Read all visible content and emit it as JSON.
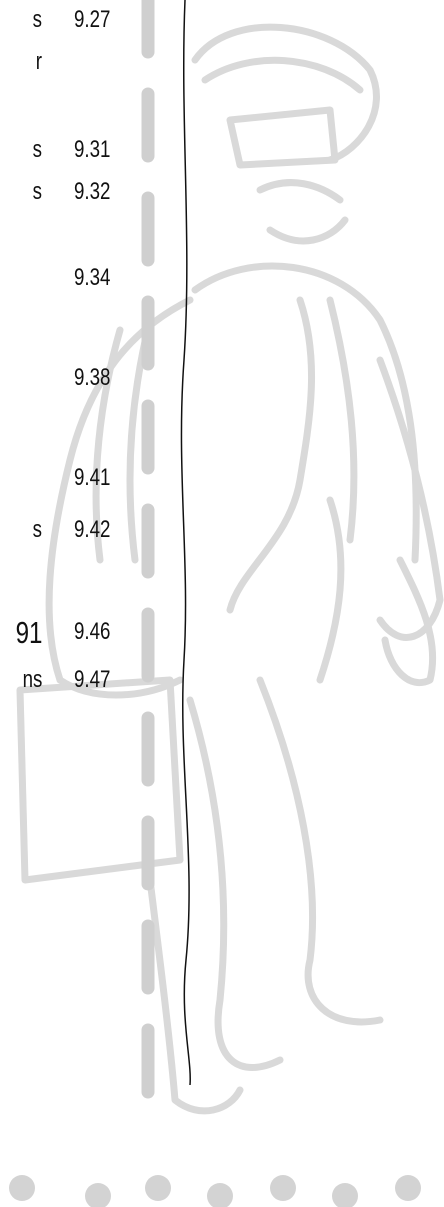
{
  "rows": [
    {
      "left": "s",
      "number": "9.27"
    },
    {
      "left": "r"
    },
    {
      "left": "s",
      "number": "9.31"
    },
    {
      "left": "s",
      "number": "9.32"
    },
    {
      "number": "9.34"
    },
    {
      "number": "9.38"
    },
    {
      "number": "9.41"
    },
    {
      "left": "s",
      "number": "9.42"
    },
    {
      "left": "91",
      "number": "9.46"
    },
    {
      "left": "ns",
      "number": "9.47"
    }
  ]
}
